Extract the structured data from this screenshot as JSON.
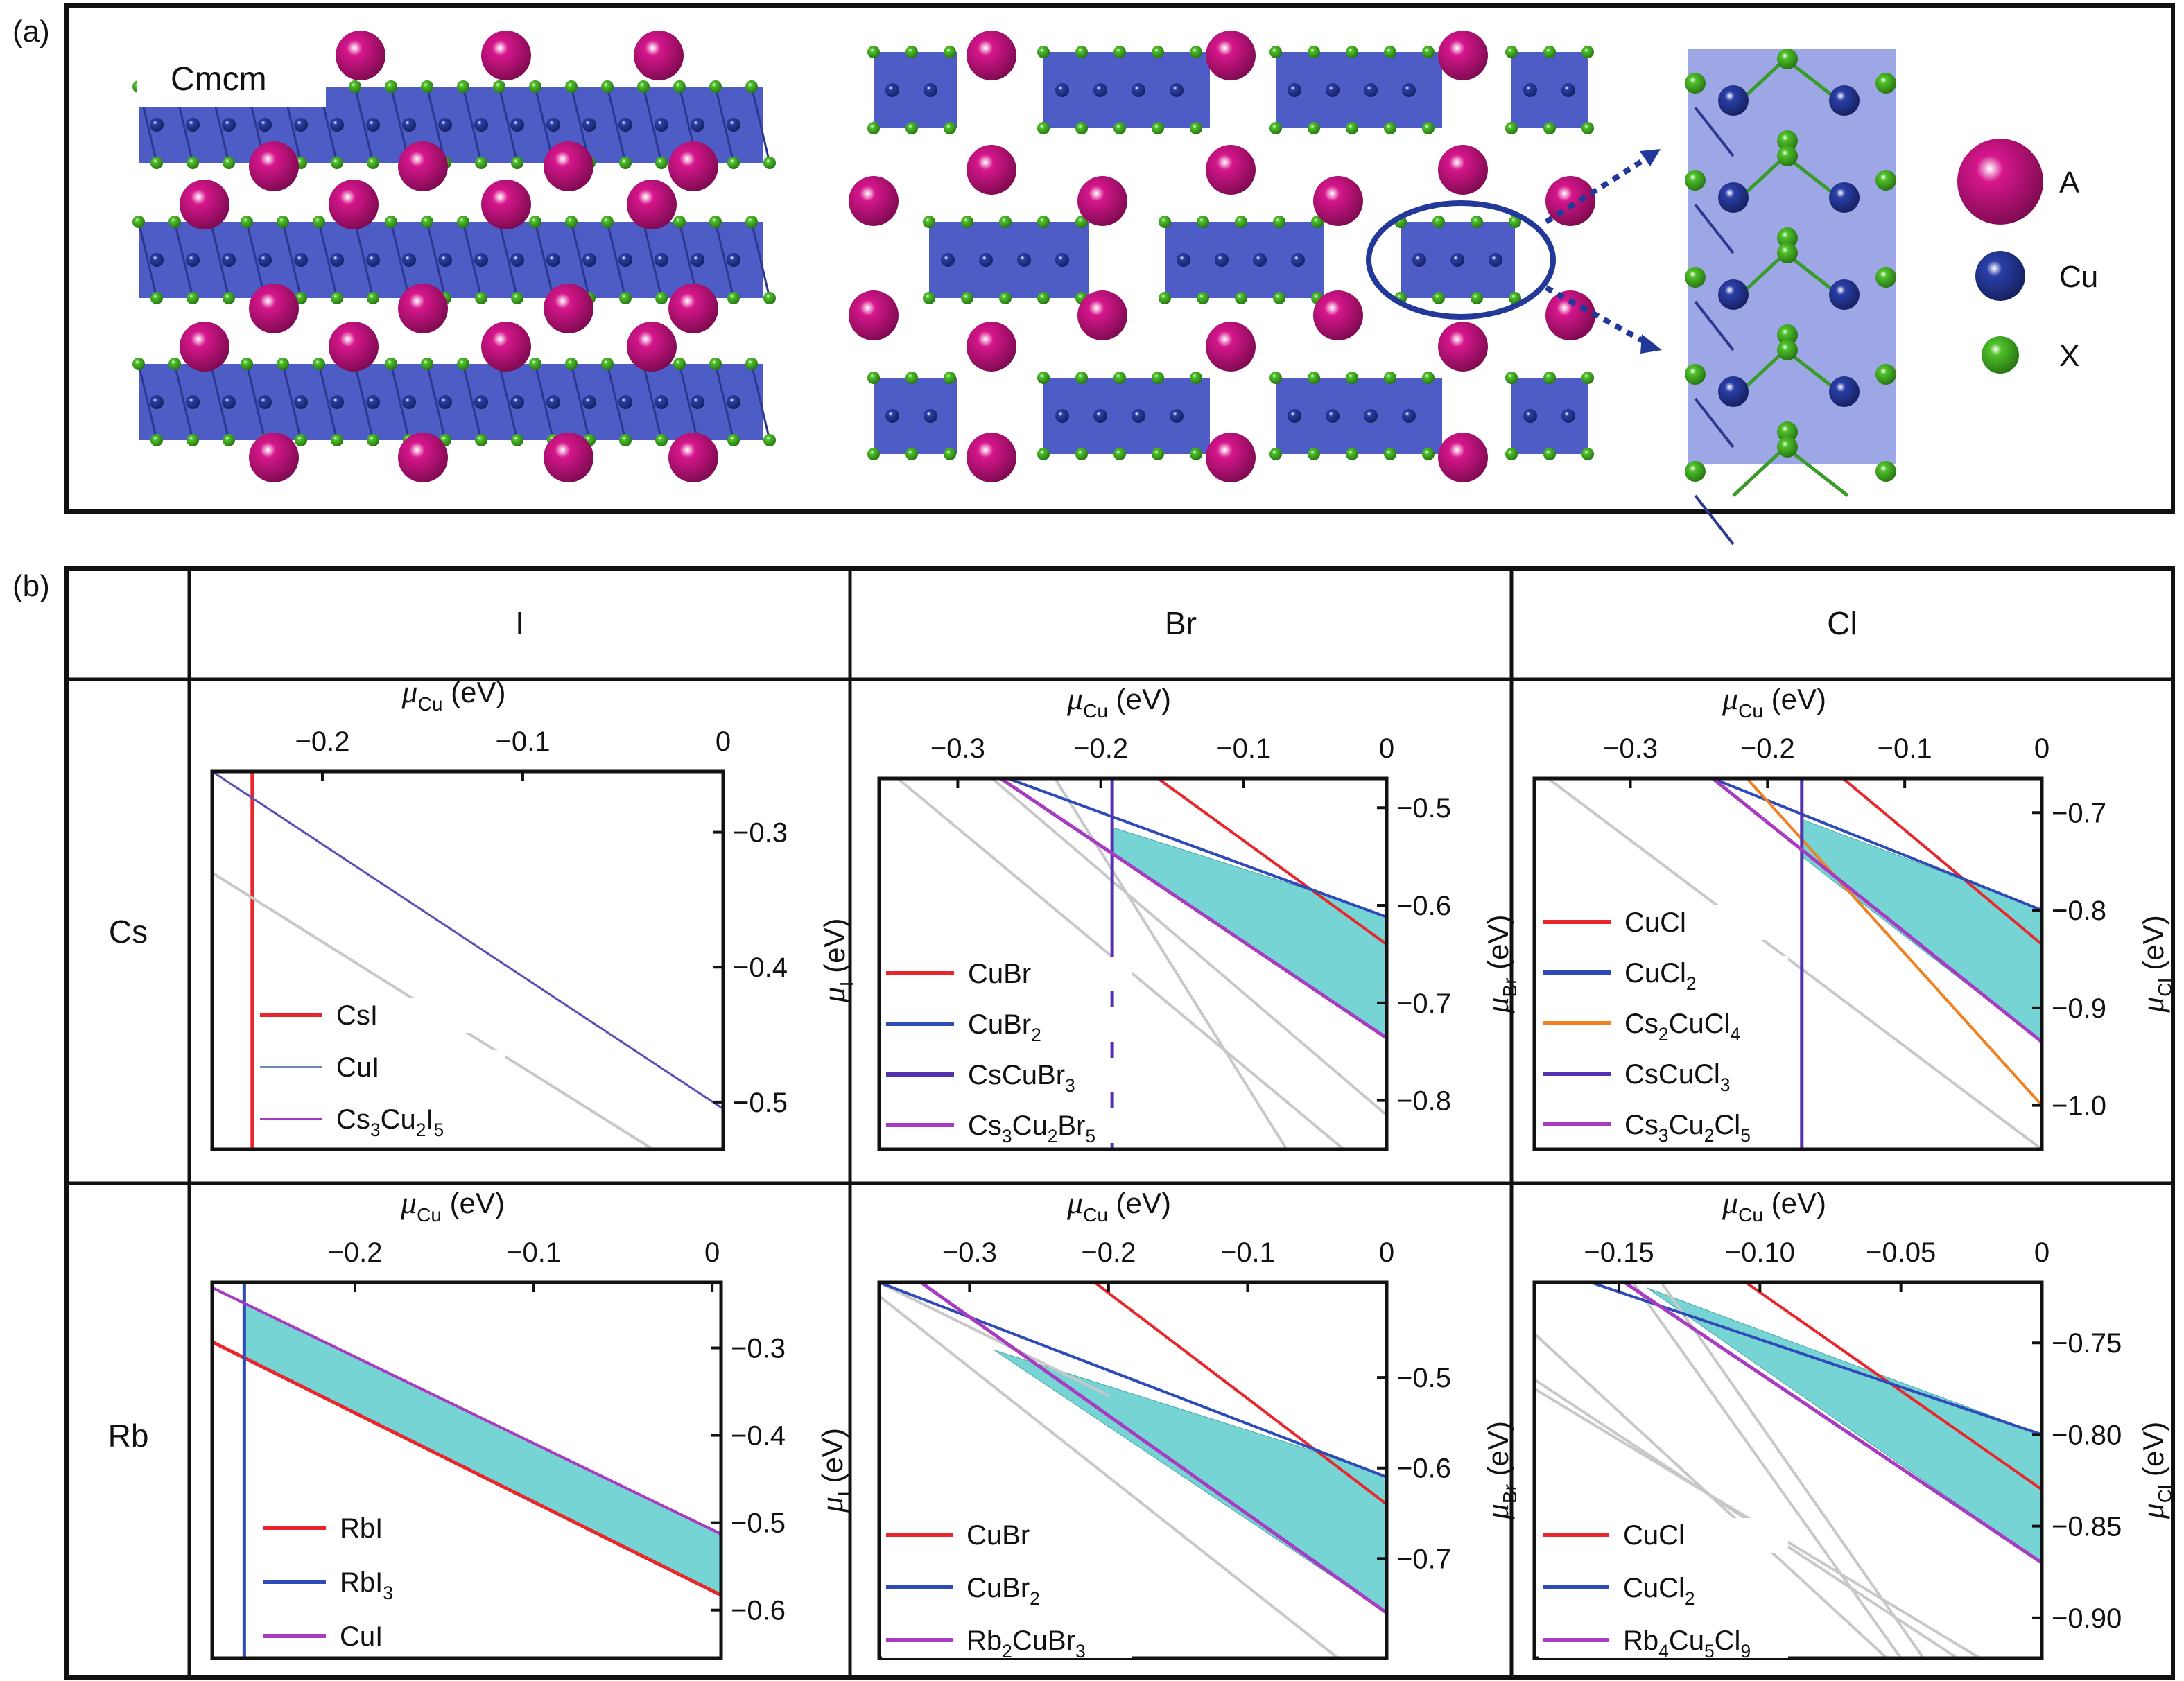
{
  "panel_a": {
    "label": "(a)",
    "space_group": "Cmcm",
    "legend": [
      {
        "name": "A",
        "color": "#d6168c"
      },
      {
        "name": "Cu",
        "color": "#2a3fa8"
      },
      {
        "name": "X",
        "color": "#4fc12a"
      }
    ],
    "colors": {
      "polyhedra": "#3f4fc0",
      "polyhedra_light": "#8d98e0",
      "ellipse": "#23399a"
    }
  },
  "panel_b": {
    "label": "(b)",
    "columns": [
      "I",
      "Br",
      "Cl"
    ],
    "rows": [
      "Cs",
      "Rb"
    ],
    "region_color": "#76d4d4",
    "region_stroke": "#4aa8a8"
  },
  "chart_data": [
    {
      "type": "line",
      "id": "Cs-I",
      "row": "Cs",
      "column": "I",
      "xlabel_sym": "μ",
      "xlabel_sub": "Cu",
      "xlabel_unit": " (eV)",
      "ylabel_sym": "μ",
      "ylabel_sub": "I",
      "ylabel_unit": " (eV)",
      "xlim": [
        -0.255,
        0.0
      ],
      "ylim": [
        -0.255,
        -0.535
      ],
      "xticks": [
        -0.2,
        -0.1,
        0
      ],
      "xticklabels": [
        "−0.2",
        "−0.1",
        "0"
      ],
      "yticks": [
        -0.3,
        -0.4,
        -0.5
      ],
      "yticklabels": [
        "−0.3",
        "−0.4",
        "−0.5"
      ],
      "region": null,
      "series": [
        {
          "name": "CsI",
          "color": "#e8262b",
          "width": 5,
          "vertical": -0.235
        },
        {
          "name": "CuI",
          "color": "#6e86b8",
          "width": 2,
          "x": [
            -0.255,
            -0.241
          ],
          "y": [
            -0.255,
            -0.255
          ]
        },
        {
          "name": "Cs3Cu2I5",
          "color": "#5a4fb8",
          "width": 3,
          "x": [
            -0.255,
            0.0
          ],
          "y": [
            -0.255,
            -0.505
          ]
        },
        {
          "name": "",
          "color": "#c8c8c8",
          "width": 4,
          "x": [
            -0.255,
            -0.035
          ],
          "y": [
            -0.33,
            -0.535
          ]
        }
      ],
      "legend": [
        {
          "color": "#e8262b",
          "width": 6,
          "parts": [
            [
              "Cs",
              ""
            ],
            [
              "I",
              ""
            ]
          ]
        },
        {
          "color": "#6e86b8",
          "width": 2,
          "parts": [
            [
              "Cu",
              ""
            ],
            [
              "I",
              ""
            ]
          ]
        },
        {
          "color": "#a03cc0",
          "width": 2,
          "parts": [
            [
              "Cs",
              "3"
            ],
            [
              "Cu",
              "2"
            ],
            [
              "I",
              "5"
            ]
          ]
        }
      ]
    },
    {
      "type": "line",
      "id": "Cs-Br",
      "row": "Cs",
      "column": "Br",
      "xlabel_sym": "μ",
      "xlabel_sub": "Cu",
      "xlabel_unit": " (eV)",
      "ylabel_sym": "μ",
      "ylabel_sub": "Br",
      "ylabel_unit": " (eV)",
      "xlim": [
        -0.355,
        0.0
      ],
      "ylim": [
        -0.47,
        -0.85
      ],
      "xticks": [
        -0.3,
        -0.2,
        -0.1,
        0
      ],
      "xticklabels": [
        "−0.3",
        "−0.2",
        "−0.1",
        "0"
      ],
      "yticks": [
        -0.5,
        -0.6,
        -0.7,
        -0.8
      ],
      "yticklabels": [
        "−0.5",
        "−0.6",
        "−0.7",
        "−0.8"
      ],
      "region": [
        [
          -0.192,
          -0.52
        ],
        [
          -0.063,
          -0.58
        ],
        [
          0.0,
          -0.612
        ],
        [
          0.0,
          -0.736
        ],
        [
          -0.192,
          -0.547
        ]
      ],
      "series": [
        {
          "name": "",
          "color": "#c8c8c8",
          "width": 4,
          "x": [
            -0.342,
            -0.03
          ],
          "y": [
            -0.47,
            -0.85
          ]
        },
        {
          "name": "",
          "color": "#c8c8c8",
          "width": 4,
          "x": [
            -0.276,
            0.0
          ],
          "y": [
            -0.47,
            -0.815
          ]
        },
        {
          "name": "",
          "color": "#c8c8c8",
          "width": 4,
          "x": [
            -0.232,
            -0.07
          ],
          "y": [
            -0.47,
            -0.85
          ]
        },
        {
          "name": "CuBr",
          "color": "#e8262b",
          "width": 4,
          "x": [
            -0.16,
            0.0
          ],
          "y": [
            -0.47,
            -0.64
          ]
        },
        {
          "name": "CuBr2",
          "color": "#2e4bb8",
          "width": 4,
          "x": [
            -0.265,
            0.0
          ],
          "y": [
            -0.47,
            -0.612
          ]
        },
        {
          "name": "CsCuBr3",
          "color": "#5232b0",
          "width": 5,
          "vertical": -0.192
        },
        {
          "name": "Cs3Cu2Br5",
          "color": "#a83cc0",
          "width": 5,
          "x": [
            -0.27,
            0.0
          ],
          "y": [
            -0.47,
            -0.736
          ]
        }
      ],
      "legend": [
        {
          "color": "#e8262b",
          "width": 6,
          "parts": [
            [
              "CuBr",
              ""
            ]
          ]
        },
        {
          "color": "#2e4bb8",
          "width": 6,
          "parts": [
            [
              "CuBr",
              "2"
            ]
          ]
        },
        {
          "color": "#5232b0",
          "width": 6,
          "parts": [
            [
              "CsCuBr",
              "3"
            ]
          ]
        },
        {
          "color": "#a83cc0",
          "width": 6,
          "parts": [
            [
              "Cs",
              "3"
            ],
            [
              "Cu",
              "2"
            ],
            [
              "Br",
              "5"
            ]
          ]
        }
      ]
    },
    {
      "type": "line",
      "id": "Cs-Cl",
      "row": "Cs",
      "column": "Cl",
      "xlabel_sym": "μ",
      "xlabel_sub": "Cu",
      "xlabel_unit": " (eV)",
      "ylabel_sym": "μ",
      "ylabel_sub": "Cl",
      "ylabel_unit": " (eV)",
      "xlim": [
        -0.37,
        0.0
      ],
      "ylim": [
        -0.665,
        -1.045
      ],
      "xticks": [
        -0.3,
        -0.2,
        -0.1,
        0
      ],
      "xticklabels": [
        "−0.3",
        "−0.2",
        "−0.1",
        "0"
      ],
      "yticks": [
        -0.7,
        -0.8,
        -0.9,
        -1.0
      ],
      "yticklabels": [
        "−0.7",
        "−0.8",
        "−0.9",
        "−1.0"
      ],
      "region": [
        [
          -0.175,
          -0.707
        ],
        [
          -0.055,
          -0.77
        ],
        [
          0.0,
          -0.8
        ],
        [
          0.0,
          -0.935
        ],
        [
          -0.175,
          -0.745
        ]
      ],
      "series": [
        {
          "name": "",
          "color": "#c8c8c8",
          "width": 4,
          "x": [
            -0.36,
            0.0
          ],
          "y": [
            -0.665,
            -1.045
          ]
        },
        {
          "name": "CuCl",
          "color": "#e8262b",
          "width": 4,
          "x": [
            -0.145,
            0.0
          ],
          "y": [
            -0.665,
            -0.835
          ]
        },
        {
          "name": "CuCl2",
          "color": "#2e4bb8",
          "width": 4,
          "x": [
            -0.24,
            0.0
          ],
          "y": [
            -0.665,
            -0.8
          ]
        },
        {
          "name": "Cs2CuCl4",
          "color": "#f08020",
          "width": 4,
          "x": [
            -0.215,
            0.0
          ],
          "y": [
            -0.665,
            -1.0
          ]
        },
        {
          "name": "CsCuCl3",
          "color": "#5232b0",
          "width": 5,
          "vertical": -0.175
        },
        {
          "name": "Cs3Cu2Cl5",
          "color": "#a83cc0",
          "width": 5,
          "x": [
            -0.24,
            0.0
          ],
          "y": [
            -0.665,
            -0.935
          ]
        }
      ],
      "legend": [
        {
          "color": "#e8262b",
          "width": 6,
          "parts": [
            [
              "CuCl",
              ""
            ]
          ]
        },
        {
          "color": "#2e4bb8",
          "width": 6,
          "parts": [
            [
              "CuCl",
              "2"
            ]
          ]
        },
        {
          "color": "#f08020",
          "width": 6,
          "parts": [
            [
              "Cs",
              "2"
            ],
            [
              "CuCl",
              "4"
            ]
          ]
        },
        {
          "color": "#5232b0",
          "width": 6,
          "parts": [
            [
              "CsCuCl",
              "3"
            ]
          ]
        },
        {
          "color": "#a83cc0",
          "width": 6,
          "parts": [
            [
              "Cs",
              "3"
            ],
            [
              "Cu",
              "2"
            ],
            [
              "Cl",
              "5"
            ]
          ]
        }
      ]
    },
    {
      "type": "line",
      "id": "Rb-I",
      "row": "Rb",
      "column": "I",
      "xlabel_sym": "μ",
      "xlabel_sub": "Cu",
      "xlabel_unit": " (eV)",
      "ylabel_sym": "μ",
      "ylabel_sub": "I",
      "ylabel_unit": " (eV)",
      "xlim": [
        -0.28,
        0.005
      ],
      "ylim": [
        -0.225,
        -0.655
      ],
      "xticks": [
        -0.2,
        -0.1,
        0
      ],
      "xticklabels": [
        "−0.2",
        "−0.1",
        "0"
      ],
      "yticks": [
        -0.3,
        -0.4,
        -0.5,
        -0.6
      ],
      "yticklabels": [
        "−0.3",
        "−0.4",
        "−0.5",
        "−0.6"
      ],
      "region": [
        [
          -0.262,
          -0.249
        ],
        [
          0.005,
          -0.513
        ],
        [
          0.005,
          -0.583
        ],
        [
          -0.262,
          -0.311
        ]
      ],
      "series": [
        {
          "name": "RbI",
          "color": "#e8262b",
          "width": 5,
          "x": [
            -0.28,
            0.005
          ],
          "y": [
            -0.293,
            -0.583
          ]
        },
        {
          "name": "RbI3",
          "color": "#2e4bb8",
          "width": 5,
          "vertical": -0.262
        },
        {
          "name": "CuI",
          "color": "#a83cc0",
          "width": 4,
          "x": [
            -0.28,
            0.005
          ],
          "y": [
            -0.231,
            -0.513
          ]
        }
      ],
      "legend": [
        {
          "color": "#e8262b",
          "width": 6,
          "parts": [
            [
              "Rb",
              ""
            ],
            [
              "I",
              ""
            ]
          ]
        },
        {
          "color": "#2e4bb8",
          "width": 6,
          "parts": [
            [
              "Rb",
              ""
            ],
            [
              "I",
              "3"
            ]
          ]
        },
        {
          "color": "#a83cc0",
          "width": 6,
          "parts": [
            [
              "Cu",
              ""
            ],
            [
              "I",
              ""
            ]
          ]
        }
      ]
    },
    {
      "type": "line",
      "id": "Rb-Br",
      "row": "Rb",
      "column": "Br",
      "xlabel_sym": "μ",
      "xlabel_sub": "Cu",
      "xlabel_unit": " (eV)",
      "ylabel_sym": "μ",
      "ylabel_sub": "Br",
      "ylabel_unit": " (eV)",
      "xlim": [
        -0.365,
        0.0
      ],
      "ylim": [
        -0.395,
        -0.81
      ],
      "xticks": [
        -0.3,
        -0.2,
        -0.1,
        0
      ],
      "xticklabels": [
        "−0.3",
        "−0.2",
        "−0.1",
        "0"
      ],
      "yticks": [
        -0.5,
        -0.6,
        -0.7
      ],
      "yticklabels": [
        "−0.5",
        "−0.6",
        "−0.7"
      ],
      "region": [
        [
          -0.282,
          -0.47
        ],
        [
          -0.055,
          -0.58
        ],
        [
          0.0,
          -0.61
        ],
        [
          0.0,
          -0.76
        ]
      ],
      "series": [
        {
          "name": "",
          "color": "#c8c8c8",
          "width": 4,
          "x": [
            -0.365,
            -0.035
          ],
          "y": [
            -0.41,
            -0.81
          ]
        },
        {
          "name": "",
          "color": "#c8c8c8",
          "width": 4,
          "x": [
            -0.365,
            -0.2
          ],
          "y": [
            -0.395,
            -0.52
          ]
        },
        {
          "name": "CuBr",
          "color": "#e8262b",
          "width": 4,
          "x": [
            -0.21,
            0.0
          ],
          "y": [
            -0.395,
            -0.64
          ]
        },
        {
          "name": "CuBr2",
          "color": "#2e4bb8",
          "width": 4,
          "x": [
            -0.365,
            0.0
          ],
          "y": [
            -0.395,
            -0.61
          ]
        },
        {
          "name": "Rb2CuBr3",
          "color": "#a83cc0",
          "width": 5,
          "x": [
            -0.335,
            0.0
          ],
          "y": [
            -0.395,
            -0.76
          ]
        }
      ],
      "legend": [
        {
          "color": "#e8262b",
          "width": 6,
          "parts": [
            [
              "CuBr",
              ""
            ]
          ]
        },
        {
          "color": "#2e4bb8",
          "width": 6,
          "parts": [
            [
              "CuBr",
              "2"
            ]
          ]
        },
        {
          "color": "#a83cc0",
          "width": 6,
          "parts": [
            [
              "Rb",
              "2"
            ],
            [
              "CuBr",
              "3"
            ]
          ]
        }
      ]
    },
    {
      "type": "line",
      "id": "Rb-Cl",
      "row": "Rb",
      "column": "Cl",
      "xlabel_sym": "μ",
      "xlabel_sub": "Cu",
      "xlabel_unit": " (eV)",
      "ylabel_sym": "μ",
      "ylabel_sub": "Cl",
      "ylabel_unit": " (eV)",
      "xlim": [
        -0.18,
        0.0
      ],
      "ylim": [
        -0.717,
        -0.922
      ],
      "xticks": [
        -0.15,
        -0.1,
        -0.05,
        0
      ],
      "xticklabels": [
        "−0.15",
        "−0.10",
        "−0.05",
        "0"
      ],
      "yticks": [
        -0.75,
        -0.8,
        -0.85,
        -0.9
      ],
      "yticklabels": [
        "−0.75",
        "−0.80",
        "−0.85",
        "−0.90"
      ],
      "region": [
        [
          -0.14,
          -0.72
        ],
        [
          -0.058,
          -0.767
        ],
        [
          0.0,
          -0.8
        ],
        [
          0.0,
          -0.87
        ]
      ],
      "series": [
        {
          "name": "",
          "color": "#c8c8c8",
          "width": 4,
          "x": [
            -0.18,
            -0.055
          ],
          "y": [
            -0.745,
            -0.922
          ]
        },
        {
          "name": "",
          "color": "#c8c8c8",
          "width": 4,
          "x": [
            -0.18,
            -0.03
          ],
          "y": [
            -0.77,
            -0.922
          ]
        },
        {
          "name": "",
          "color": "#c8c8c8",
          "width": 4,
          "x": [
            -0.18,
            -0.022
          ],
          "y": [
            -0.775,
            -0.922
          ]
        },
        {
          "name": "",
          "color": "#c8c8c8",
          "width": 4,
          "x": [
            -0.145,
            -0.05
          ],
          "y": [
            -0.717,
            -0.922
          ]
        },
        {
          "name": "",
          "color": "#c8c8c8",
          "width": 4,
          "x": [
            -0.135,
            -0.042
          ],
          "y": [
            -0.717,
            -0.922
          ]
        },
        {
          "name": "CuCl",
          "color": "#e8262b",
          "width": 4,
          "x": [
            -0.105,
            0.0
          ],
          "y": [
            -0.717,
            -0.83
          ]
        },
        {
          "name": "CuCl2",
          "color": "#2e4bb8",
          "width": 4,
          "x": [
            -0.16,
            0.0
          ],
          "y": [
            -0.717,
            -0.8
          ]
        },
        {
          "name": "Rb4Cu5Cl9",
          "color": "#a83cc0",
          "width": 5,
          "x": [
            -0.148,
            0.0
          ],
          "y": [
            -0.717,
            -0.87
          ]
        }
      ],
      "legend": [
        {
          "color": "#e8262b",
          "width": 6,
          "parts": [
            [
              "CuCl",
              ""
            ]
          ]
        },
        {
          "color": "#2e4bb8",
          "width": 6,
          "parts": [
            [
              "CuCl",
              "2"
            ]
          ]
        },
        {
          "color": "#a83cc0",
          "width": 6,
          "parts": [
            [
              "Rb",
              "4"
            ],
            [
              "Cu",
              "5"
            ],
            [
              "Cl",
              "9"
            ]
          ]
        }
      ]
    }
  ]
}
